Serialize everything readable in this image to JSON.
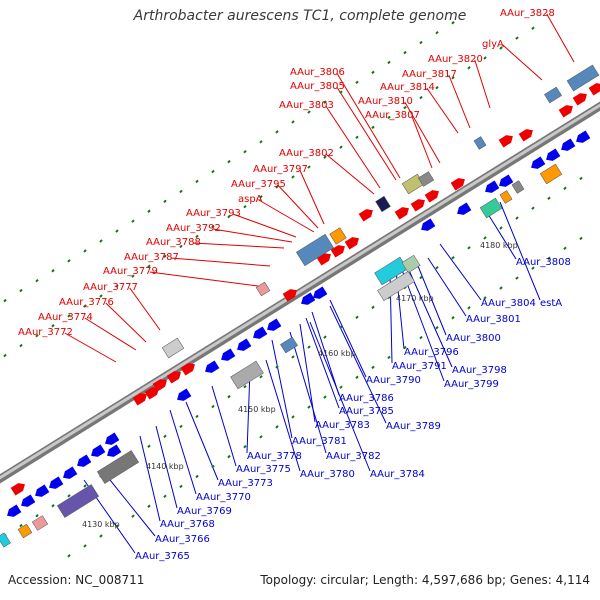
{
  "title": "Arthrobacter aurescens TC1, complete genome",
  "footer": {
    "accession": "Accession: NC_008711",
    "info": "Topology: circular; Length: 4,597,686 bp; Genes: 4,114"
  },
  "colors": {
    "backbone": "#8c8c8c",
    "forward_label": "#e00000",
    "reverse_label": "#0000cc",
    "forward_gene": "#ee0000",
    "reverse_gene": "#0000ee",
    "tick_green": "#117711"
  },
  "ticks": [
    "4130 kbp",
    "4140 kbp",
    "4150 kbp",
    "4160 kbp",
    "4170 kbp",
    "4180 kbp"
  ],
  "forward_labels": [
    "AAur_3828",
    "glyA",
    "AAur_3820",
    "AAur_3817",
    "AAur_3814",
    "AAur_3810",
    "AAur_3807",
    "AAur_3806",
    "AAur_3805",
    "AAur_3803",
    "AAur_3802",
    "AAur_3797",
    "AAur_3795",
    "aspA",
    "AAur_3793",
    "AAur_3792",
    "AAur_3788",
    "AAur_3787",
    "AAur_3779",
    "AAur_3777",
    "AAur_3776",
    "AAur_3774",
    "AAur_3772"
  ],
  "reverse_labels": [
    "AAur_3808",
    "estA",
    "AAur_3804",
    "AAur_3801",
    "AAur_3800",
    "AAur_3796",
    "AAur_3791",
    "AAur_3798",
    "AAur_3799",
    "AAur_3790",
    "AAur_3786",
    "AAur_3785",
    "AAur_3789",
    "AAur_3783",
    "AAur_3781",
    "AAur_3782",
    "AAur_3778",
    "AAur_3780",
    "AAur_3784",
    "AAur_3775",
    "AAur_3773",
    "AAur_3770",
    "AAur_3769",
    "AAur_3768",
    "AAur_3766",
    "AAur_3765"
  ]
}
